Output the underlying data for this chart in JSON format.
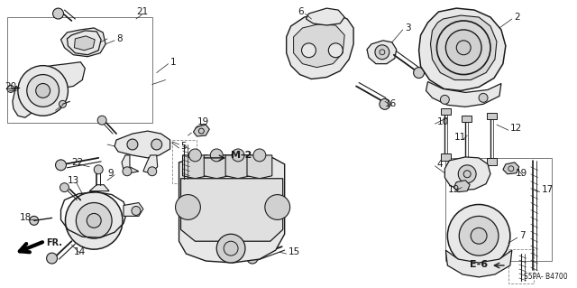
{
  "bg_color": "#ffffff",
  "fig_width": 6.4,
  "fig_height": 3.19,
  "dpi": 100,
  "parts_label": "S5PA- B4700",
  "ref_label_m2": "M-2",
  "ref_label_e6": "E-6",
  "fr_label": "FR.",
  "line_color": "#1a1a1a",
  "fill_light": "#e8e8e8",
  "fill_mid": "#cccccc",
  "fill_dark": "#888888"
}
